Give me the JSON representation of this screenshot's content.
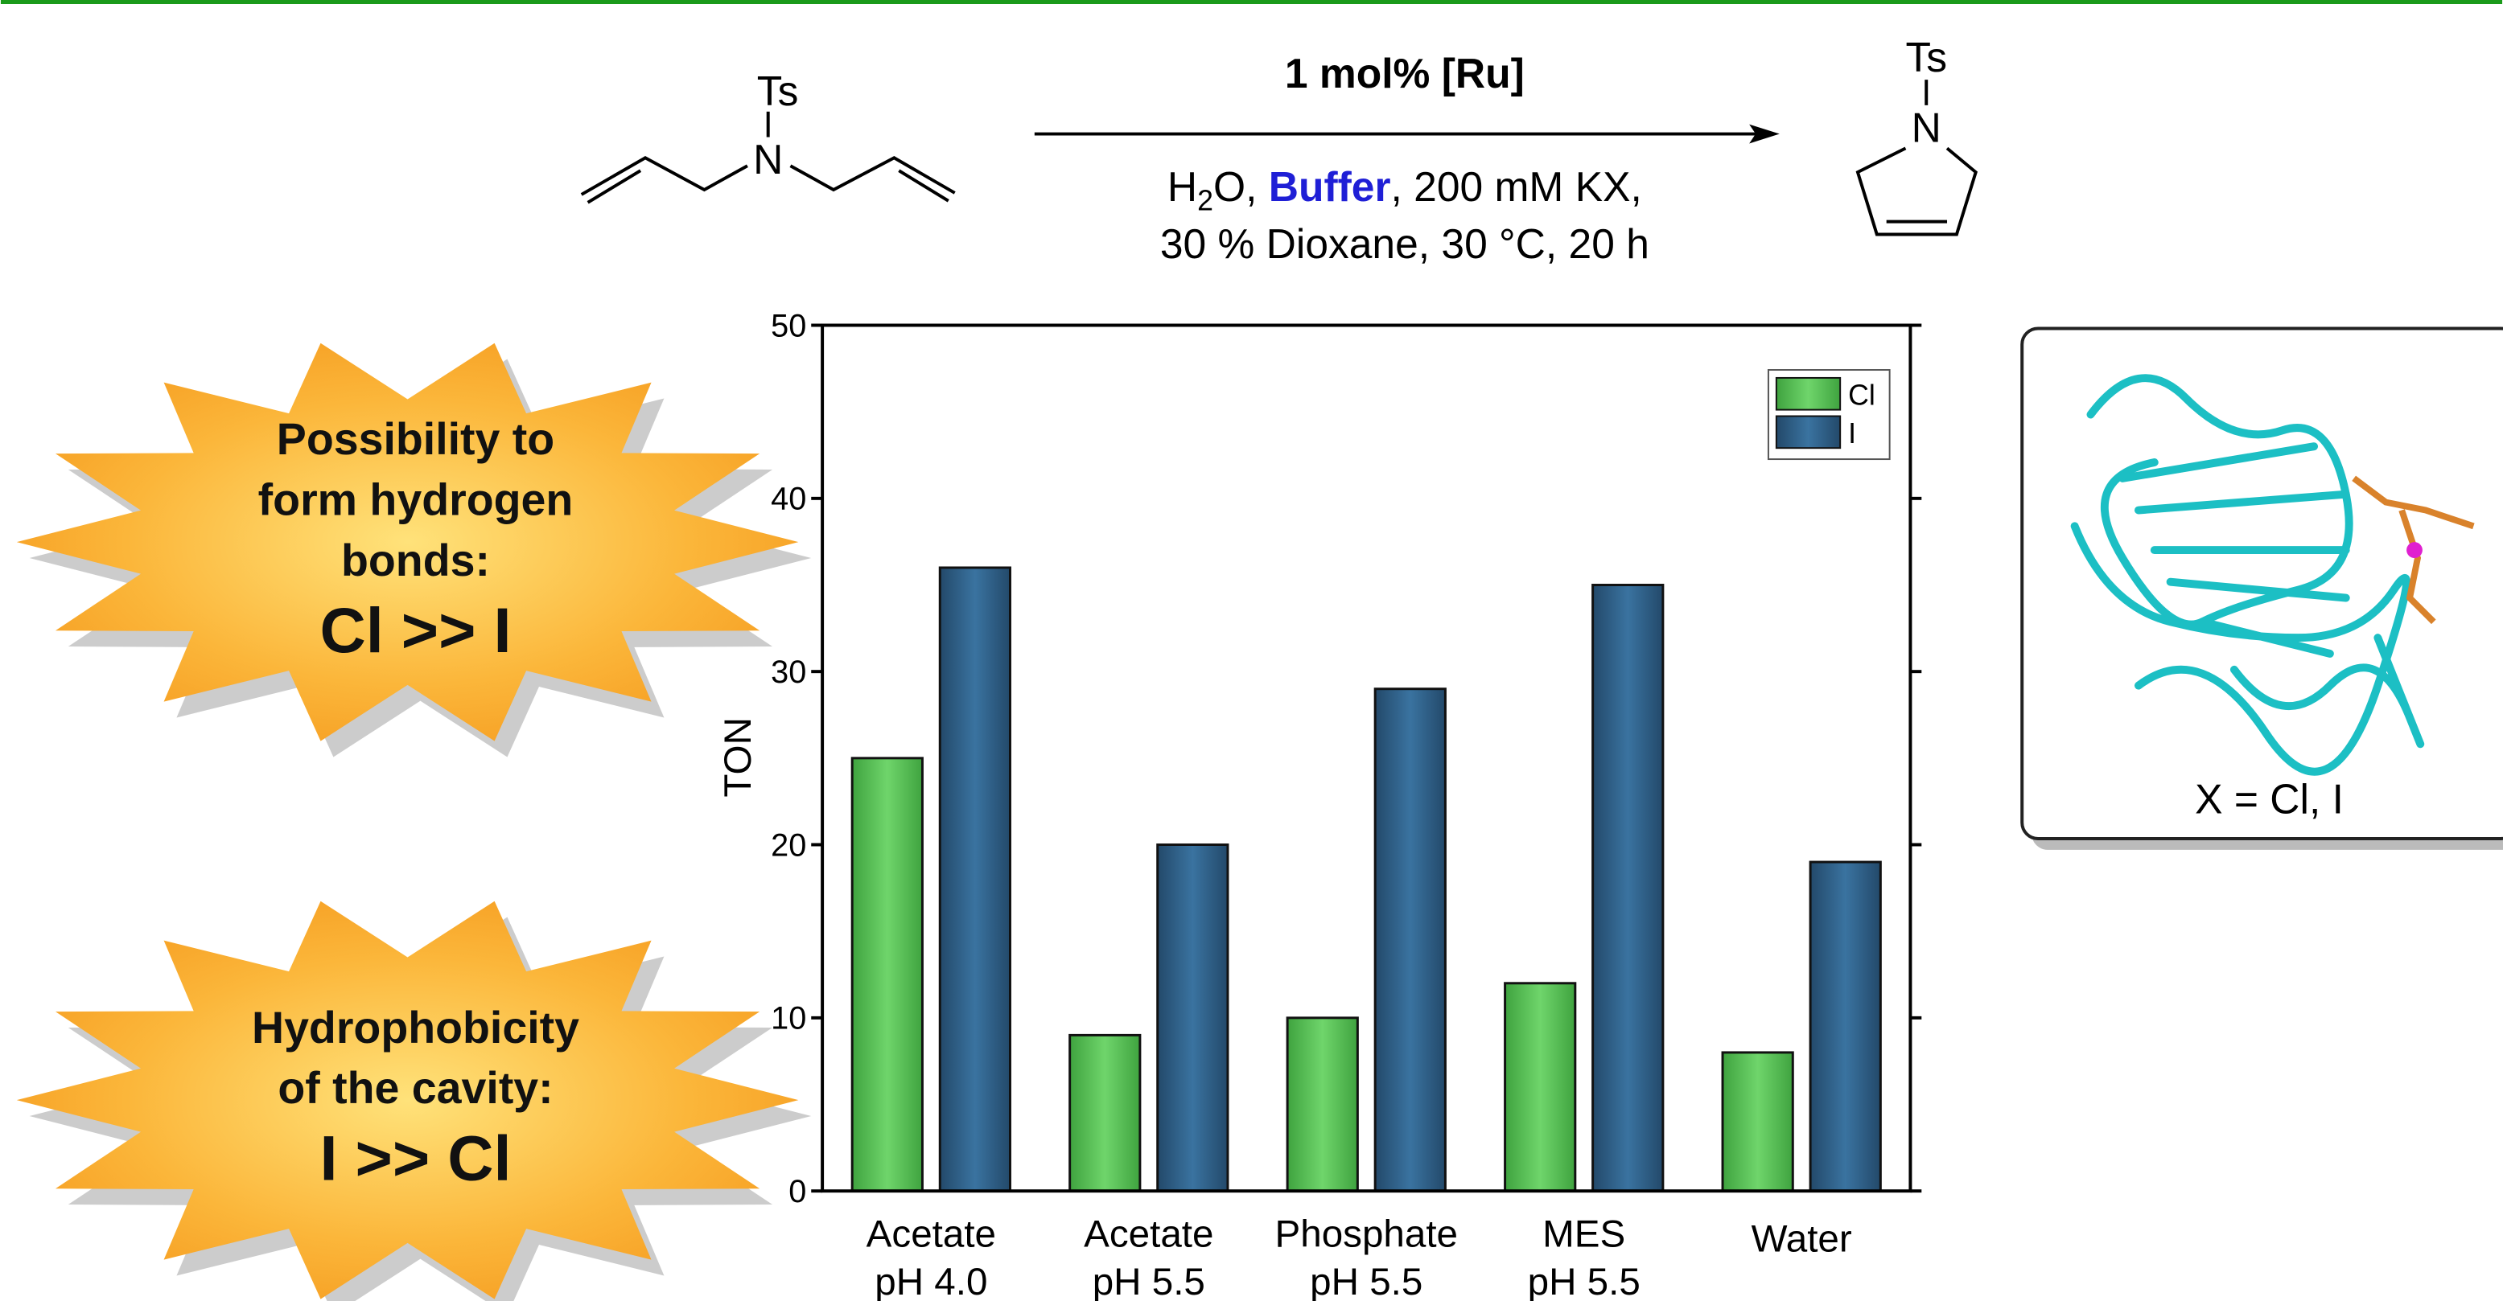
{
  "scheme": {
    "reactant": {
      "group": "Ts",
      "atom": "N"
    },
    "catalyst": "1 mol% [Ru]",
    "conditions_line1": [
      "H",
      "2",
      "O, ",
      "Buffer",
      ", 200 mM KX,"
    ],
    "conditions_line2": "30 % Dioxane, 30 °C, 20 h",
    "product": {
      "group": "Ts",
      "atom": "N"
    }
  },
  "callouts": [
    {
      "lines": [
        "Possibility to",
        "form hydrogen",
        "bonds:"
      ],
      "emphasis": "Cl >> I"
    },
    {
      "lines": [
        "Hydrophobicity",
        "of the cavity:"
      ],
      "emphasis": "I >> Cl"
    }
  ],
  "structure_caption": "X = Cl, I",
  "chart_data": {
    "type": "bar",
    "y_label": "TON",
    "categories": [
      [
        "Acetate",
        "pH 4.0"
      ],
      [
        "Acetate",
        "pH 5.5"
      ],
      [
        "Phosphate",
        "pH 5.5"
      ],
      [
        "MES",
        "pH 5.5"
      ],
      [
        "Water"
      ]
    ],
    "series": [
      {
        "name": "Cl",
        "color": "#5cc85a",
        "values": [
          25,
          9,
          10,
          12,
          8
        ]
      },
      {
        "name": "I",
        "color": "#2e5f86",
        "values": [
          36,
          20,
          29,
          35,
          19
        ]
      }
    ],
    "ylim": [
      0,
      50
    ],
    "yticks": [
      0,
      10,
      20,
      30,
      40,
      50
    ],
    "legend": "upper right"
  }
}
